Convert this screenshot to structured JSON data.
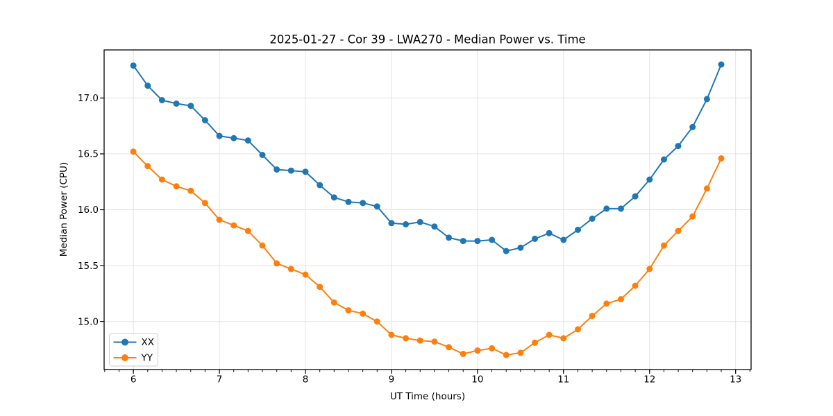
{
  "chart_data": {
    "type": "line",
    "title": "2025-01-27 - Cor 39 - LWA270 - Median Power vs. Time",
    "xlabel": "UT Time (hours)",
    "ylabel": "Median Power (CPU)",
    "xlim": [
      5.66,
      13.18
    ],
    "ylim": [
      14.57,
      17.43
    ],
    "grid": true,
    "legend_position": "lower left",
    "x_ticks": {
      "values": [
        6,
        7,
        8,
        9,
        10,
        11,
        12,
        13
      ],
      "labels": [
        "6",
        "7",
        "8",
        "9",
        "10",
        "11",
        "12",
        "13"
      ]
    },
    "x_minor_tick_step": 0.1666667,
    "y_ticks": {
      "values": [
        15.0,
        15.5,
        16.0,
        16.5,
        17.0
      ],
      "labels": [
        "15.0",
        "15.5",
        "16.0",
        "16.5",
        "17.0"
      ]
    },
    "x": [
      6.0,
      6.167,
      6.333,
      6.5,
      6.667,
      6.833,
      7.0,
      7.167,
      7.333,
      7.5,
      7.667,
      7.833,
      8.0,
      8.167,
      8.333,
      8.5,
      8.667,
      8.833,
      9.0,
      9.167,
      9.333,
      9.5,
      9.667,
      9.833,
      10.0,
      10.167,
      10.333,
      10.5,
      10.667,
      10.833,
      11.0,
      11.167,
      11.333,
      11.5,
      11.667,
      11.833,
      12.0,
      12.167,
      12.333,
      12.5,
      12.667,
      12.833
    ],
    "series": [
      {
        "name": "XX",
        "color": "#1f77b4",
        "values": [
          17.29,
          17.11,
          16.98,
          16.95,
          16.93,
          16.8,
          16.66,
          16.64,
          16.62,
          16.49,
          16.36,
          16.35,
          16.34,
          16.22,
          16.11,
          16.07,
          16.06,
          16.03,
          15.88,
          15.87,
          15.89,
          15.85,
          15.75,
          15.72,
          15.72,
          15.73,
          15.63,
          15.66,
          15.74,
          15.79,
          15.73,
          15.82,
          15.92,
          16.01,
          16.01,
          16.12,
          16.27,
          16.45,
          16.57,
          16.74,
          16.99,
          17.3
        ]
      },
      {
        "name": "YY",
        "color": "#ff7f0e",
        "values": [
          16.52,
          16.39,
          16.27,
          16.21,
          16.17,
          16.06,
          15.91,
          15.86,
          15.81,
          15.68,
          15.52,
          15.47,
          15.42,
          15.31,
          15.17,
          15.1,
          15.07,
          15.0,
          14.88,
          14.85,
          14.83,
          14.82,
          14.77,
          14.71,
          14.74,
          14.76,
          14.7,
          14.72,
          14.81,
          14.88,
          14.85,
          14.93,
          15.05,
          15.16,
          15.2,
          15.32,
          15.47,
          15.68,
          15.81,
          15.94,
          16.19,
          16.46
        ]
      }
    ],
    "style": {
      "grid_color": "#e3e3e3",
      "spine_color": "#000000",
      "tick_color": "#000000",
      "text_color": "#000000",
      "legend_edge_color": "#cccccc",
      "legend_face_color": "#ffffff"
    }
  }
}
